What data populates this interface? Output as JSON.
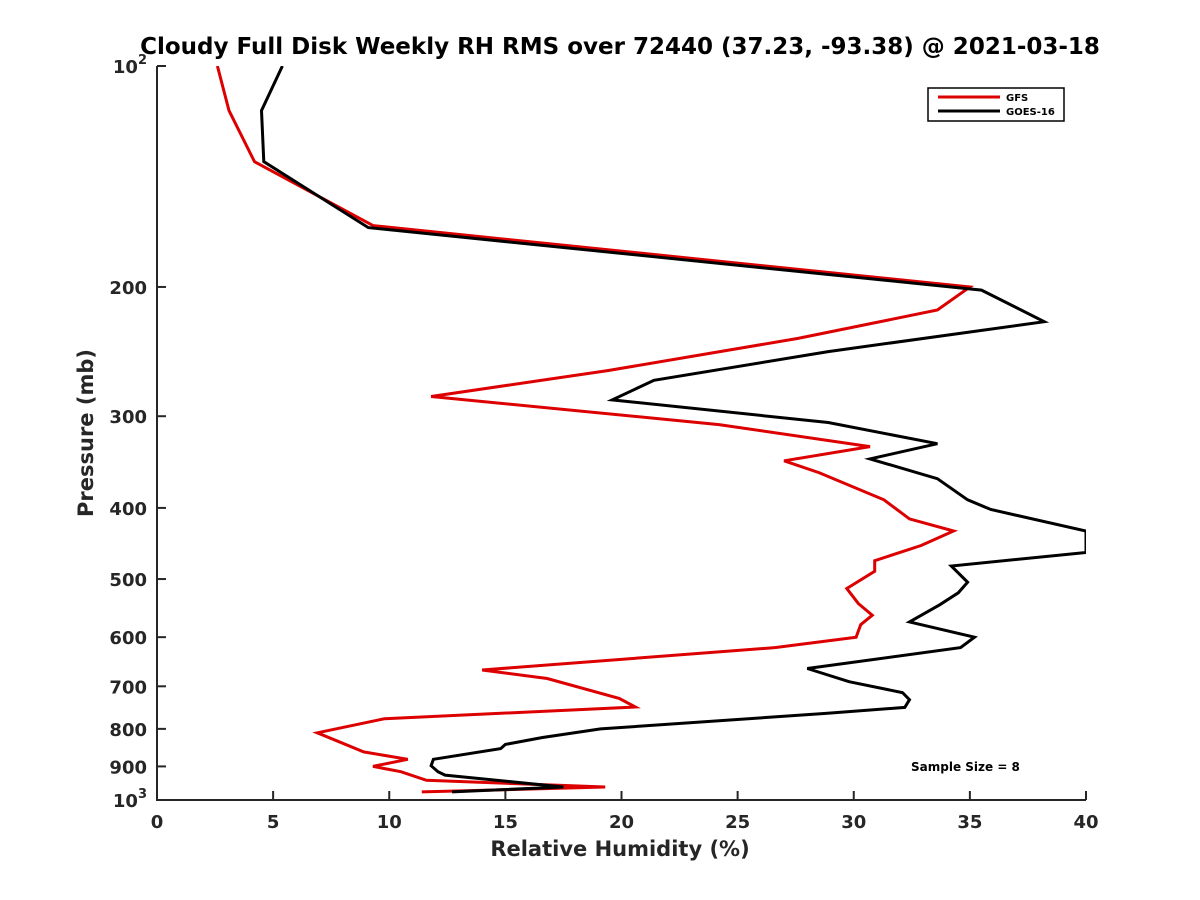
{
  "chart_data": {
    "type": "line",
    "title": "Cloudy Full Disk Weekly RH RMS over 72440 (37.23, -93.38) @ 2021-03-18",
    "xlabel": "Relative Humidity (%)",
    "ylabel": "Pressure (mb)",
    "xlim": [
      0,
      40
    ],
    "ylim": [
      100,
      1000
    ],
    "y_scale": "log",
    "y_reversed": true,
    "xticks": [
      0,
      5,
      10,
      15,
      20,
      25,
      30,
      35,
      40
    ],
    "yticks": [
      {
        "value": 100,
        "label": "10",
        "sup": "2"
      },
      {
        "value": 200,
        "label": "200",
        "sup": ""
      },
      {
        "value": 300,
        "label": "300",
        "sup": ""
      },
      {
        "value": 400,
        "label": "400",
        "sup": ""
      },
      {
        "value": 500,
        "label": "500",
        "sup": ""
      },
      {
        "value": 600,
        "label": "600",
        "sup": ""
      },
      {
        "value": 700,
        "label": "700",
        "sup": ""
      },
      {
        "value": 800,
        "label": "800",
        "sup": ""
      },
      {
        "value": 900,
        "label": "900",
        "sup": ""
      },
      {
        "value": 1000,
        "label": "10",
        "sup": "3"
      }
    ],
    "grid": false,
    "legend": "top-right",
    "annotation": "Sample Size = 8",
    "series": [
      {
        "name": "GFS",
        "color": "#dd0000",
        "points": [
          [
            2.6,
            100
          ],
          [
            3.1,
            115
          ],
          [
            4.2,
            135
          ],
          [
            9.3,
            165
          ],
          [
            35.0,
            200
          ],
          [
            33.6,
            215
          ],
          [
            27.6,
            235
          ],
          [
            19.4,
            260
          ],
          [
            11.8,
            282
          ],
          [
            24.2,
            308
          ],
          [
            30.7,
            330
          ],
          [
            27.0,
            345
          ],
          [
            28.5,
            358
          ],
          [
            31.3,
            390
          ],
          [
            32.4,
            414
          ],
          [
            34.3,
            430
          ],
          [
            32.9,
            450
          ],
          [
            30.9,
            472
          ],
          [
            30.9,
            488
          ],
          [
            29.7,
            515
          ],
          [
            30.2,
            540
          ],
          [
            30.8,
            560
          ],
          [
            30.3,
            577
          ],
          [
            30.1,
            600
          ],
          [
            26.6,
            620
          ],
          [
            14.0,
            665
          ],
          [
            16.8,
            683
          ],
          [
            19.9,
            727
          ],
          [
            20.6,
            747
          ],
          [
            9.8,
            775
          ],
          [
            6.9,
            810
          ],
          [
            8.9,
            860
          ],
          [
            10.8,
            880
          ],
          [
            9.3,
            900
          ],
          [
            10.5,
            915
          ],
          [
            11.6,
            940
          ],
          [
            19.3,
            960
          ],
          [
            11.4,
            975
          ]
        ]
      },
      {
        "name": "GOES-16",
        "color": "#000000",
        "points": [
          [
            5.4,
            100
          ],
          [
            4.5,
            115
          ],
          [
            4.6,
            135
          ],
          [
            9.1,
            166
          ],
          [
            35.5,
            202
          ],
          [
            38.2,
            223
          ],
          [
            28.9,
            245
          ],
          [
            21.4,
            268
          ],
          [
            19.6,
            285
          ],
          [
            28.9,
            306
          ],
          [
            33.6,
            327
          ],
          [
            30.7,
            343
          ],
          [
            33.6,
            365
          ],
          [
            34.9,
            390
          ],
          [
            35.9,
            402
          ],
          [
            40.0,
            430
          ],
          [
            40.0,
            460
          ],
          [
            34.2,
            480
          ],
          [
            34.9,
            505
          ],
          [
            34.5,
            522
          ],
          [
            33.7,
            542
          ],
          [
            32.4,
            572
          ],
          [
            35.2,
            600
          ],
          [
            34.6,
            620
          ],
          [
            28.0,
            662
          ],
          [
            29.8,
            690
          ],
          [
            32.1,
            714
          ],
          [
            32.4,
            730
          ],
          [
            32.2,
            748
          ],
          [
            28.8,
            762
          ],
          [
            19.1,
            800
          ],
          [
            16.6,
            822
          ],
          [
            15.0,
            840
          ],
          [
            14.8,
            851
          ],
          [
            11.9,
            880
          ],
          [
            11.8,
            898
          ],
          [
            12.1,
            915
          ],
          [
            12.4,
            925
          ],
          [
            17.5,
            960
          ],
          [
            12.7,
            975
          ]
        ]
      }
    ]
  }
}
